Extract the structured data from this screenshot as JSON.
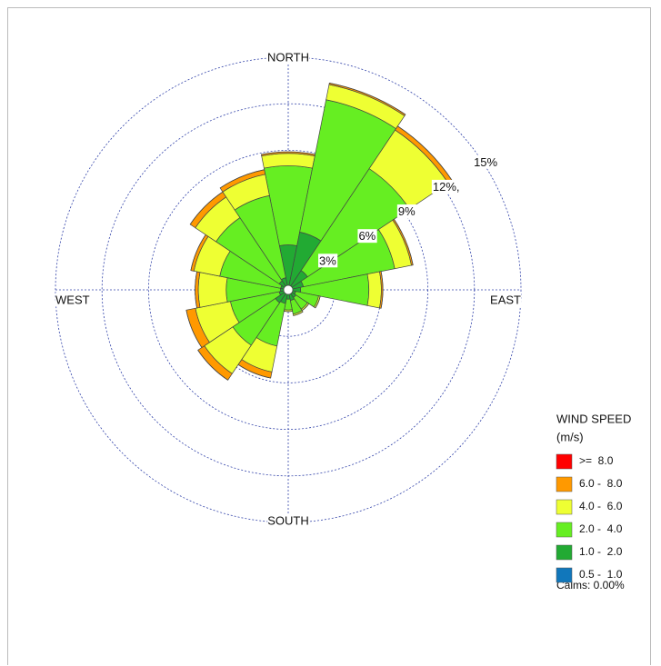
{
  "chart_data": {
    "type": "windrose",
    "legend_title": "WIND SPEED",
    "legend_unit": "(m/s)",
    "calms": "Calms: 0.00%",
    "categories": [
      "NORTH",
      null,
      null,
      null,
      "EAST",
      null,
      null,
      null,
      "SOUTH",
      null,
      null,
      null,
      "WEST",
      null,
      null,
      null
    ],
    "rlim": [
      0,
      15
    ],
    "rticks": [
      {
        "value": 3,
        "label": "3%"
      },
      {
        "value": 6,
        "label": "6%"
      },
      {
        "value": 9,
        "label": "9%"
      },
      {
        "value": 12,
        "label": "12%,"
      },
      {
        "value": 15,
        "label": "15%"
      }
    ],
    "series": [
      {
        "name": "0.5 -  1.0",
        "color": "#1177bb",
        "values": [
          0,
          0,
          0,
          0,
          0,
          0,
          0,
          0,
          0,
          0,
          0,
          0,
          0,
          0,
          0,
          0
        ]
      },
      {
        "name": "1.0 -  2.0",
        "color": "#22aa33",
        "values": [
          2.9,
          3.8,
          1.5,
          1.0,
          0.8,
          0.5,
          0.6,
          0.7,
          0.6,
          0.9,
          1.0,
          0.6,
          0.5,
          0.5,
          0.7,
          0.8
        ]
      },
      {
        "name": "2.0 -  4.0",
        "color": "#66ee22",
        "values": [
          5.1,
          8.7,
          7.9,
          6.0,
          4.4,
          1.5,
          0.9,
          0.9,
          0.7,
          2.8,
          3.3,
          3.2,
          3.5,
          4.0,
          4.9,
          5.4
        ]
      },
      {
        "name": "4.0 -  6.0",
        "color": "#eeff33",
        "values": [
          0.8,
          1.0,
          3.0,
          1.1,
          0.8,
          0.1,
          0.1,
          0.1,
          0.1,
          1.7,
          2.2,
          2.3,
          1.8,
          1.7,
          1.6,
          1.4
        ]
      },
      {
        "name": "6.0 -  8.0",
        "color": "#ff9900",
        "values": [
          0.1,
          0.1,
          0.3,
          0.1,
          0.1,
          0,
          0,
          0,
          0,
          0.4,
          0.5,
          0.6,
          0.2,
          0.2,
          0.4,
          0.3
        ]
      },
      {
        "name": ">=  8.0",
        "color": "#ff0000",
        "values": [
          0,
          0,
          0,
          0,
          0,
          0,
          0,
          0,
          0,
          0,
          0,
          0,
          0,
          0,
          0,
          0
        ]
      }
    ]
  }
}
